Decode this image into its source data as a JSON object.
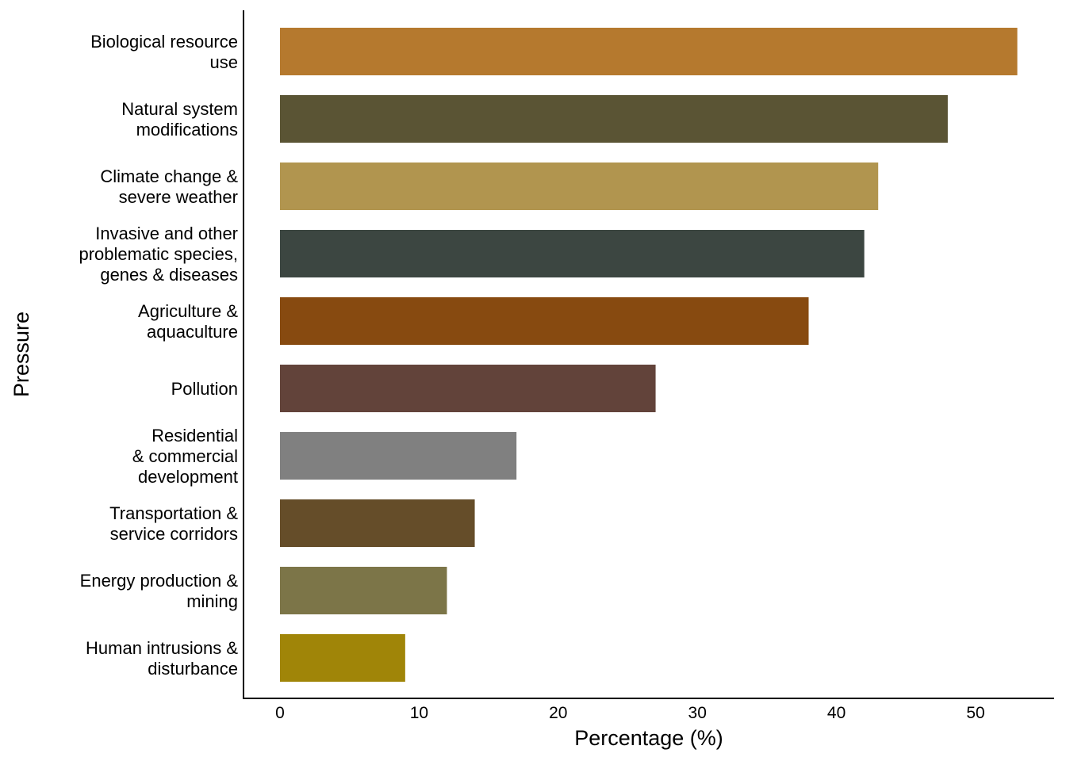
{
  "chart_data": {
    "type": "bar",
    "orientation": "horizontal",
    "title": "",
    "xlabel": "Percentage (%)",
    "ylabel": "Pressure",
    "xlim": [
      0,
      55
    ],
    "xticks": [
      "0",
      "10",
      "20",
      "30",
      "40",
      "50"
    ],
    "grid": false,
    "categories": [
      [
        "Biological resource",
        "use"
      ],
      [
        "Natural system",
        "modifications"
      ],
      [
        "Climate change &",
        "severe weather"
      ],
      [
        "Invasive and other",
        "problematic species,",
        "genes & diseases"
      ],
      [
        "Agriculture &",
        "aquaculture"
      ],
      [
        "Pollution"
      ],
      [
        "Residential",
        "& commercial",
        "development"
      ],
      [
        "Transportation &",
        "service corridors"
      ],
      [
        "Energy production &",
        "mining"
      ],
      [
        "Human intrusions &",
        "disturbance"
      ]
    ],
    "values": [
      53,
      48,
      43,
      42,
      38,
      27,
      17,
      14,
      12,
      9
    ],
    "colors": [
      "#B5792E",
      "#5A5434",
      "#B1954F",
      "#3C4641",
      "#874A10",
      "#62433A",
      "#808080",
      "#654D29",
      "#7C7548",
      "#A08508"
    ]
  }
}
